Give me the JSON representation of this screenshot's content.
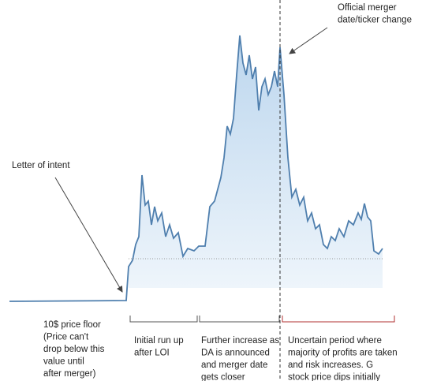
{
  "annotations": {
    "merger": [
      "Official merger",
      "date/ticker change"
    ],
    "loi": [
      "Letter of intent"
    ],
    "floor": [
      "10$ price floor",
      "(Price can't",
      "drop below this",
      "value until",
      "after merger)"
    ],
    "run_up": [
      "Initial run up",
      "after LOI"
    ],
    "increase": [
      "Further increase as",
      "DA is announced",
      "and merger date",
      "gets closer"
    ],
    "uncertain": [
      "Uncertain period where",
      "majority of profits are taken",
      "and risk increases. G",
      "stock price dips initially"
    ]
  }
}
